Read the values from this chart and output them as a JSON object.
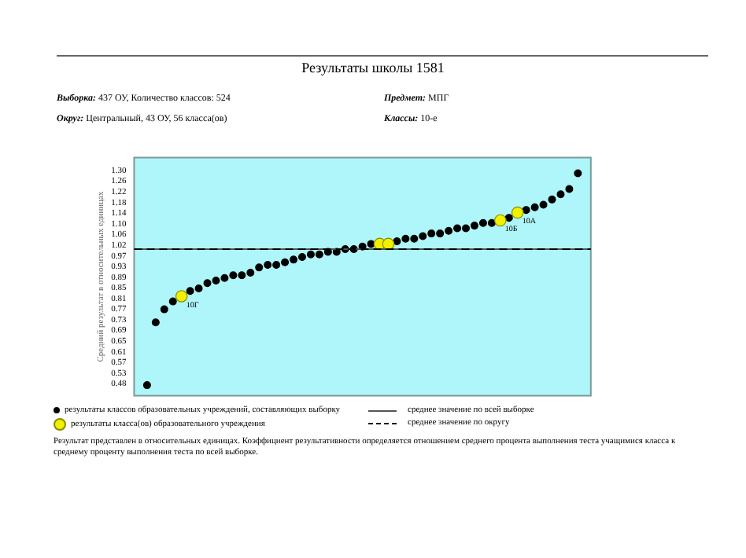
{
  "chart_data": {
    "type": "scatter",
    "title": "Результаты школы 1581",
    "ylabel": "Средний результат в относительных единицах",
    "annotations": [
      "Выборка: 437 ОУ, Количество классов: 524",
      "Предмет: МПГ",
      "Округ: Центральный, 43 ОУ, 56 класса(ов)",
      "Классы: 10-е",
      "Результат представлен в относительных единицах. Коэффициент результативности определяется отношением среднего процента выполнения теста учащимися класса к среднему проценту выполнения теста по всей выборке.",
      {
        "text": "10Г",
        "y": 0.82
      },
      {
        "text": "10Б",
        "y": 1.11
      },
      {
        "text": "10А",
        "y": 1.14
      }
    ],
    "categories": [
      null,
      null,
      null,
      null,
      null,
      null,
      null,
      null,
      null,
      null,
      null,
      null,
      null,
      null,
      null,
      null,
      null,
      null,
      null,
      null,
      null,
      null,
      null,
      null,
      null,
      null,
      null,
      null,
      null,
      null,
      null,
      null,
      null,
      null,
      null,
      null,
      null,
      null,
      null,
      null,
      null,
      null,
      null,
      null,
      null,
      null,
      null,
      null,
      null,
      null,
      null,
      null,
      null
    ],
    "series": [
      {
        "name": "результаты классов образовательных учреждений, составляющих выборку",
        "color": "#000000",
        "values": [
          null,
          0.48,
          0.72,
          0.77,
          0.8,
          null,
          0.84,
          0.85,
          0.87,
          0.88,
          0.89,
          0.9,
          0.9,
          0.91,
          0.93,
          0.94,
          0.94,
          0.95,
          0.96,
          0.97,
          0.98,
          0.98,
          0.99,
          0.99,
          1.0,
          1.0,
          1.01,
          1.02,
          null,
          null,
          1.03,
          1.04,
          1.04,
          1.05,
          1.06,
          1.06,
          1.07,
          1.08,
          1.08,
          1.09,
          1.1,
          1.1,
          null,
          1.12,
          null,
          1.15,
          1.16,
          1.17,
          1.19,
          1.21,
          1.23,
          1.29,
          null
        ]
      },
      {
        "name": "результаты класса(ов) образовательного учреждения",
        "color": "#f0f000",
        "values": [
          null,
          null,
          null,
          null,
          null,
          0.82,
          null,
          null,
          null,
          null,
          null,
          null,
          null,
          null,
          null,
          null,
          null,
          null,
          null,
          null,
          null,
          null,
          null,
          null,
          null,
          null,
          null,
          null,
          1.02,
          1.02,
          null,
          null,
          null,
          null,
          null,
          null,
          null,
          null,
          null,
          null,
          null,
          null,
          1.11,
          null,
          1.14,
          null,
          null,
          null,
          null,
          null,
          null,
          null,
          null
        ]
      }
    ],
    "ylim": [
      0.44,
      1.35
    ],
    "yticks": [
      {
        "value": 0.485,
        "label": "0.48"
      },
      {
        "value": 0.526,
        "label": "0.53"
      },
      {
        "value": 0.567,
        "label": "0.57"
      },
      {
        "value": 0.607,
        "label": "0.61"
      },
      {
        "value": 0.648,
        "label": "0.65"
      },
      {
        "value": 0.689,
        "label": "0.69"
      },
      {
        "value": 0.73,
        "label": "0.73"
      },
      {
        "value": 0.771,
        "label": "0.77"
      },
      {
        "value": 0.811,
        "label": "0.81"
      },
      {
        "value": 0.852,
        "label": "0.85"
      },
      {
        "value": 0.893,
        "label": "0.89"
      },
      {
        "value": 0.934,
        "label": "0.93"
      },
      {
        "value": 0.974,
        "label": "0.97"
      },
      {
        "value": 1.015,
        "label": "1.02"
      },
      {
        "value": 1.056,
        "label": "1.06"
      },
      {
        "value": 1.097,
        "label": "1.10"
      },
      {
        "value": 1.137,
        "label": "1.14"
      },
      {
        "value": 1.178,
        "label": "1.18"
      },
      {
        "value": 1.219,
        "label": "1.22"
      },
      {
        "value": 1.26,
        "label": "1.26"
      },
      {
        "value": 1.3,
        "label": "1.30"
      }
    ],
    "ref_lines": [
      {
        "axis": "y",
        "value": 1.0,
        "label": "среднее значение по всей выборке",
        "color": "#555555",
        "line_style": "solid"
      },
      {
        "axis": "y",
        "value": 1.0,
        "label": "среднее значение по округу",
        "color": "#000000",
        "line_style": "dashed"
      }
    ],
    "marker": "circle",
    "grid": false,
    "legend": "bottom",
    "tick_labels": "y"
  }
}
